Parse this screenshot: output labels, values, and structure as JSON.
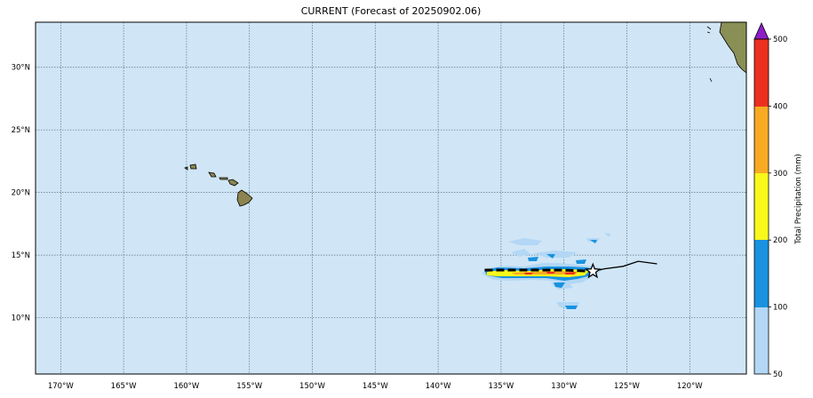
{
  "title": "CURRENT (Forecast of 20250902.06)",
  "colors": {
    "ocean": "#d0e6f6",
    "grid": "#5a6f80",
    "track": "#000000",
    "precip_50": "#b3d7f5",
    "precip_100": "#1992e0",
    "precip_200": "#f8f81a",
    "precip_300": "#f7aa22",
    "precip_400": "#ec3020",
    "precip_over": "#8e1ec8",
    "land": "#8a8f55"
  },
  "map": {
    "lon_range": [
      -172,
      -115.5
    ],
    "lat_range": [
      5.5,
      33.6
    ],
    "lon_ticks": [
      {
        "value": -170,
        "label": "170°W"
      },
      {
        "value": -165,
        "label": "165°W"
      },
      {
        "value": -160,
        "label": "160°W"
      },
      {
        "value": -155,
        "label": "155°W"
      },
      {
        "value": -150,
        "label": "150°W"
      },
      {
        "value": -145,
        "label": "145°W"
      },
      {
        "value": -140,
        "label": "140°W"
      },
      {
        "value": -135,
        "label": "135°W"
      },
      {
        "value": -130,
        "label": "130°W"
      },
      {
        "value": -125,
        "label": "125°W"
      },
      {
        "value": -120,
        "label": "120°W"
      }
    ],
    "lat_ticks": [
      {
        "value": 10,
        "label": "10°N"
      },
      {
        "value": 15,
        "label": "15°N"
      },
      {
        "value": 20,
        "label": "20°N"
      },
      {
        "value": 25,
        "label": "25°N"
      },
      {
        "value": 30,
        "label": "30°N"
      }
    ],
    "storm_track": [
      [
        -136.3,
        13.8
      ],
      [
        -133,
        13.8
      ],
      [
        -130,
        13.8
      ],
      [
        -127.7,
        13.7
      ],
      [
        -126.8,
        13.9
      ],
      [
        -125.3,
        14.1
      ],
      [
        -124.1,
        14.5
      ],
      [
        -122.6,
        14.3
      ]
    ],
    "current_position": [
      -127.7,
      13.7
    ]
  },
  "colorbar": {
    "label": "Total Precipitation (mm)",
    "levels": [
      50,
      100,
      200,
      300,
      400,
      500
    ],
    "tick_labels": [
      "50",
      "100",
      "200",
      "300",
      "400",
      "500"
    ]
  }
}
